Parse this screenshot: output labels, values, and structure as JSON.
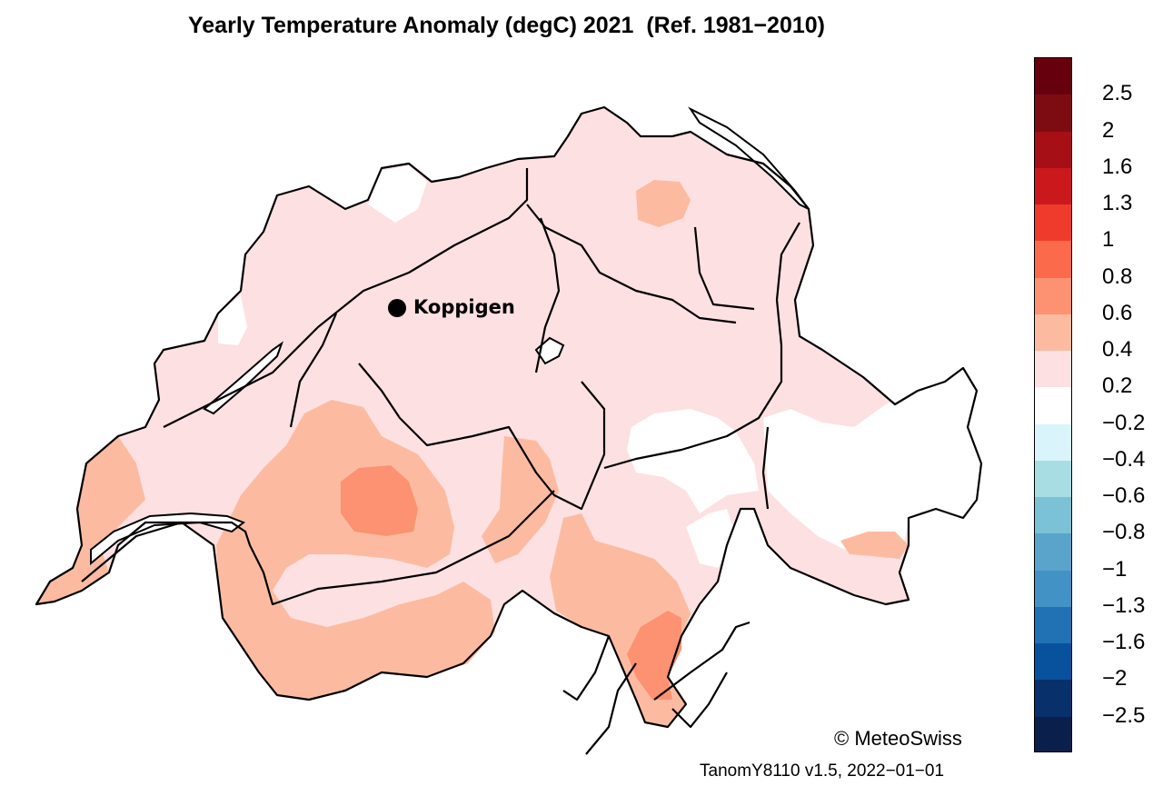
{
  "title": "Yearly Temperature Anomaly (degC) 2021  (Ref. 1981−2010)",
  "station": {
    "name": "Koppigen"
  },
  "copyright": "© MeteoSwiss",
  "footer": "TanomY8110 v1.5, 2022−01−01",
  "legend": {
    "ticks": [
      "2.5",
      "2",
      "1.6",
      "1.3",
      "1",
      "0.8",
      "0.6",
      "0.4",
      "0.2",
      "−0.2",
      "−0.4",
      "−0.6",
      "−0.8",
      "−1",
      "−1.3",
      "−1.6",
      "−2",
      "−2.5"
    ],
    "colors": [
      "#67000d",
      "#7d0b12",
      "#a50f15",
      "#cb181d",
      "#ef3b2c",
      "#fb6a4a",
      "#fc9272",
      "#fcbba1",
      "#fde0e2",
      "#ffffff",
      "#d9f4fb",
      "#a8dde3",
      "#7cc2d6",
      "#5aa4cc",
      "#4292c6",
      "#2171b5",
      "#08519c",
      "#08306b",
      "#0a1f4b"
    ]
  },
  "map_colors": {
    "base": "#fde0e2",
    "level_04": "#fcbba1",
    "level_06": "#fc9272",
    "neutral": "#ffffff",
    "border": "#000000"
  }
}
